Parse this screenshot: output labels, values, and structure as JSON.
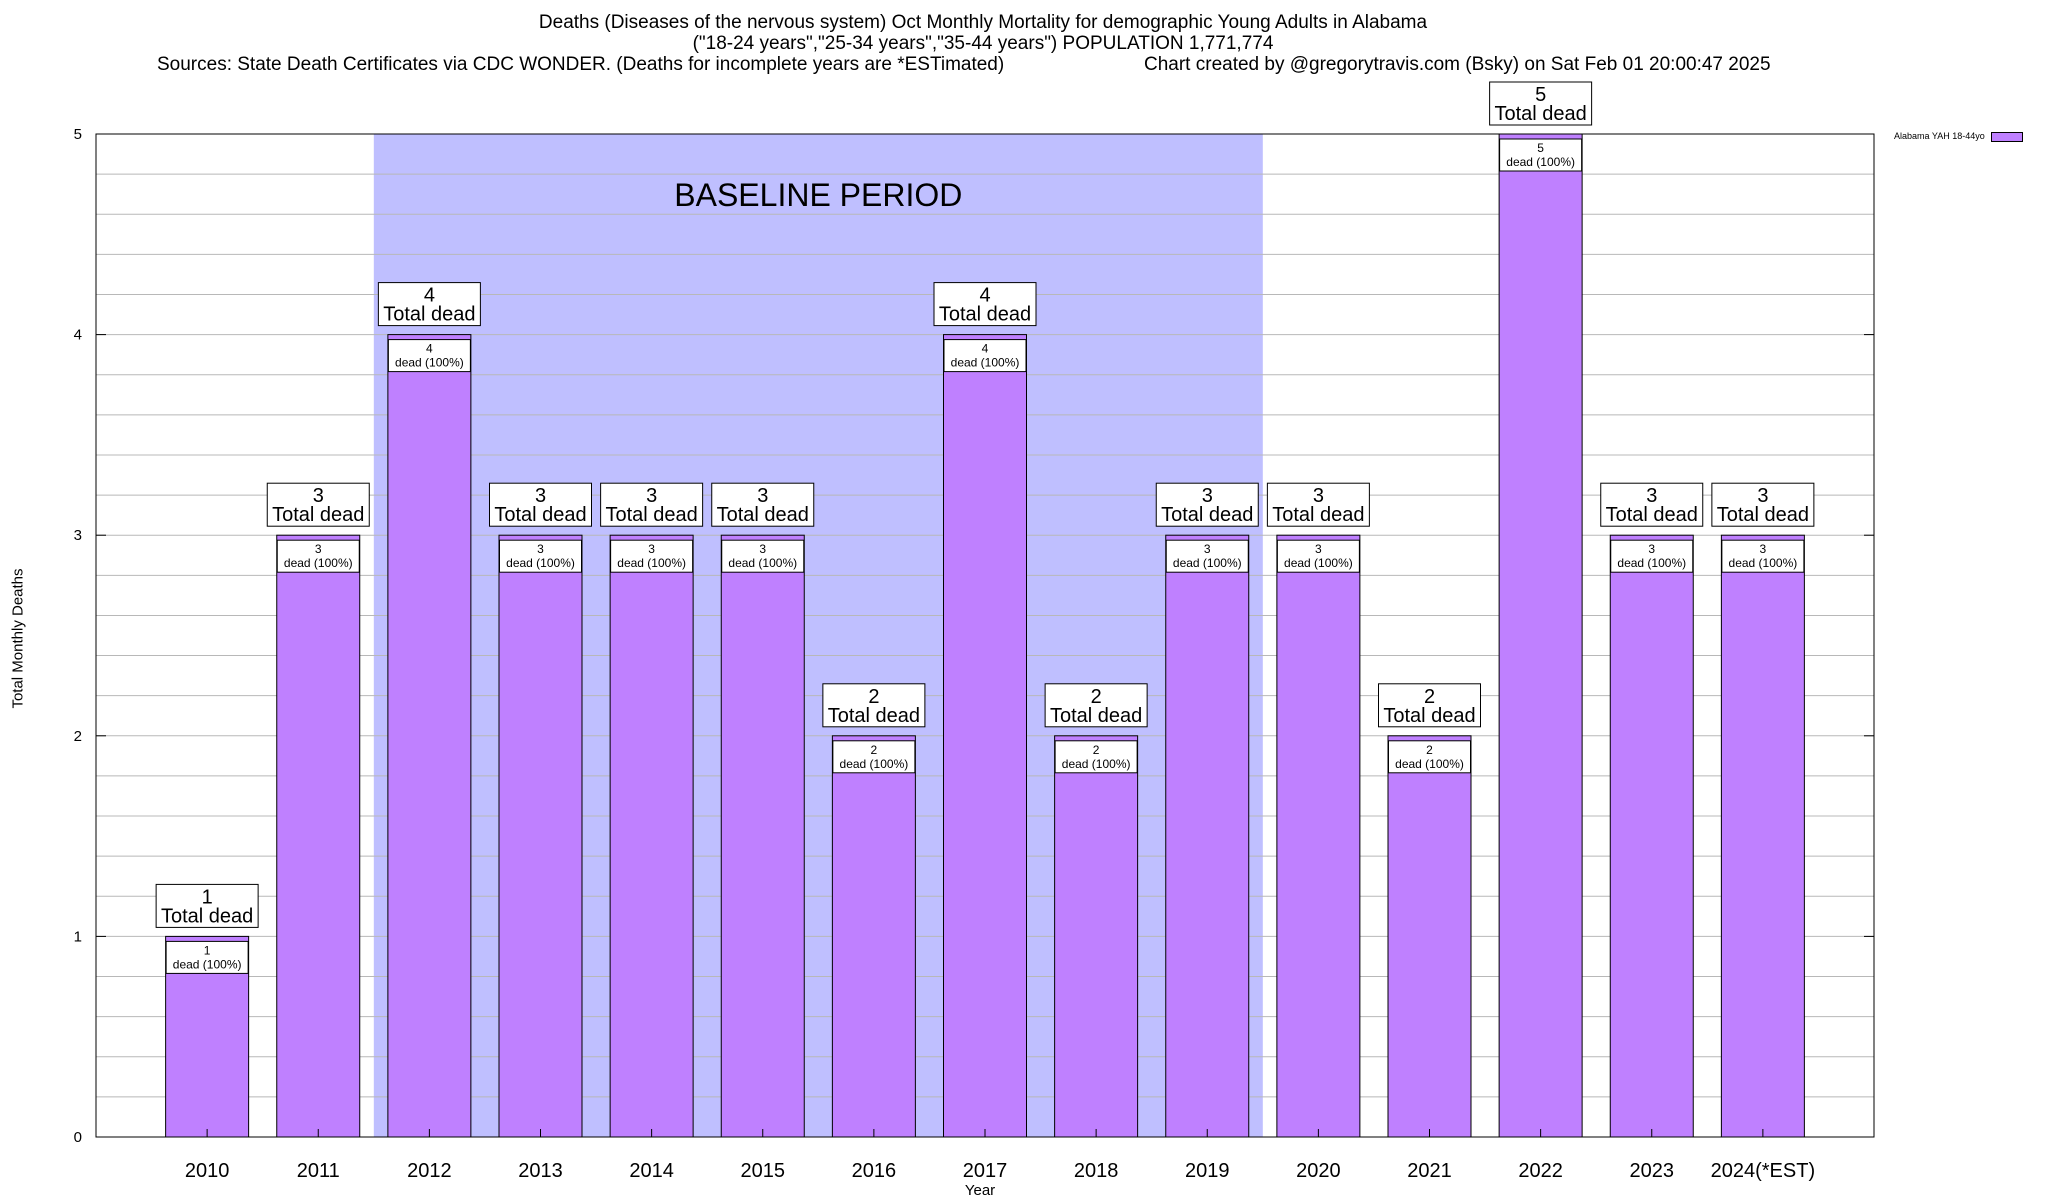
{
  "header": {
    "title_line1": "Deaths (Diseases of the nervous system) Oct Monthly Mortality for demographic Young Adults in Alabama",
    "title_line2": "(\"18-24 years\",\"25-34 years\",\"35-44 years\") POPULATION 1,771,774",
    "sources": "Sources: State Death Certificates via CDC WONDER. (Deaths for incomplete years are *ESTimated)",
    "credit": "Chart created by @gregorytravis.com (Bsky) on Sat Feb 01 20:00:47 2025"
  },
  "chart_data": {
    "type": "bar",
    "categories": [
      "2010",
      "2011",
      "2012",
      "2013",
      "2014",
      "2015",
      "2016",
      "2017",
      "2018",
      "2019",
      "2020",
      "2021",
      "2022",
      "2023",
      "2024(*EST)"
    ],
    "series": [
      {
        "name": "Alabama YAH 18-44yo",
        "values": [
          1,
          3,
          4,
          3,
          3,
          3,
          2,
          4,
          2,
          3,
          3,
          2,
          5,
          3,
          3
        ]
      }
    ],
    "xlabel": "Year",
    "ylabel": "Total Monthly Deaths",
    "ylim": [
      0,
      5
    ],
    "yticks": [
      0,
      1,
      2,
      3,
      4,
      5
    ],
    "grid": true,
    "legend_position": "top-right",
    "bar_label_top_suffix": "Total dead",
    "bar_label_inner_suffix": "dead (100%)",
    "baseline_period": {
      "label": "BASELINE PERIOD",
      "from": "2012",
      "to": "2019"
    },
    "colors": {
      "bar": "#bf80ff",
      "baseline": "#bfbfff",
      "grid": "#b8b8b8"
    }
  }
}
